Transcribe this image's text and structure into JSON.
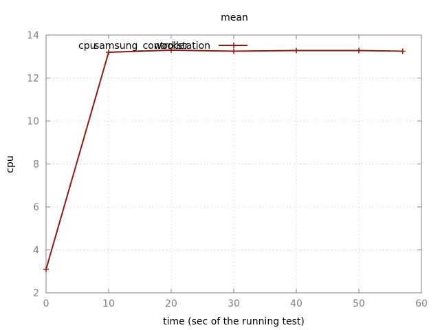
{
  "chart_data": {
    "type": "line",
    "title": "mean",
    "xlabel": "time (sec of the running test)",
    "ylabel": "cpu",
    "xlim": [
      0,
      60
    ],
    "ylim": [
      2,
      14
    ],
    "xticks": [
      "0",
      "10",
      "20",
      "30",
      "40",
      "50",
      "60"
    ],
    "yticks": [
      "2",
      "4",
      "6",
      "8",
      "10",
      "12",
      "14"
    ],
    "grid": true,
    "legend_position": "top",
    "series": [
      {
        "name": "cpu",
        "legend_label": "cpu",
        "legend_overlay": [
          "samsung_controller",
          "workstation"
        ],
        "color": "#8b1a10",
        "x": [
          0,
          10,
          20,
          30,
          40,
          50,
          57
        ],
        "y": [
          3.1,
          13.2,
          13.3,
          13.25,
          13.28,
          13.28,
          13.25
        ]
      }
    ]
  }
}
